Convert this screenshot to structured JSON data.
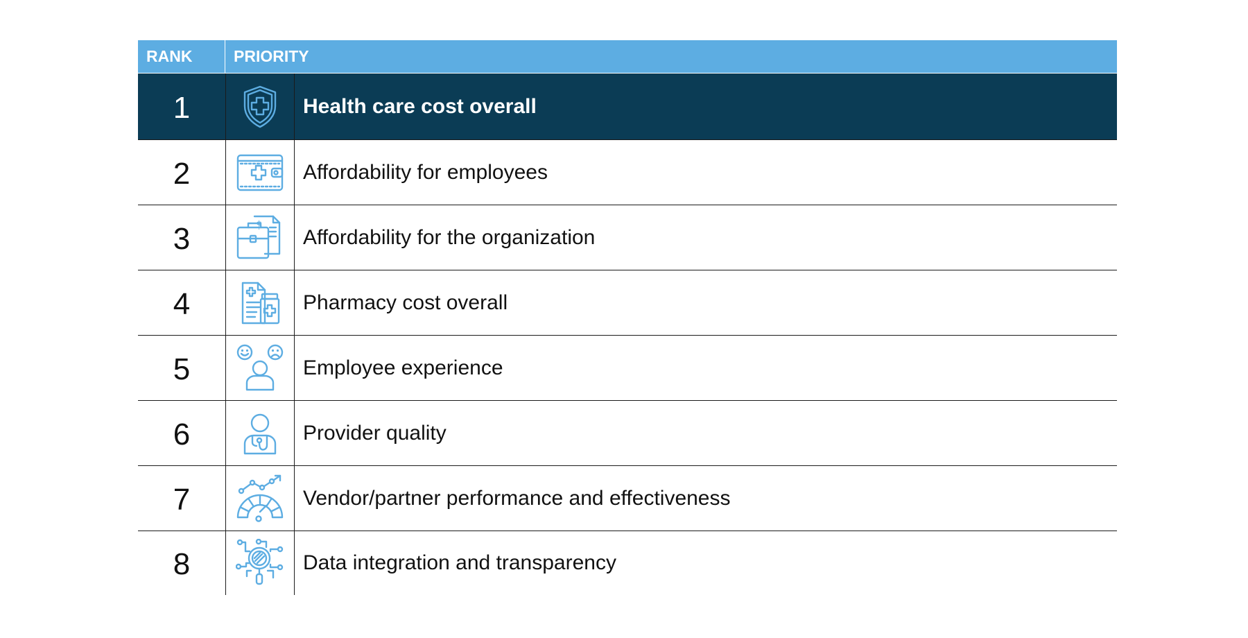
{
  "header": {
    "rank": "RANK",
    "priority": "PRIORITY"
  },
  "rows": [
    {
      "rank": "1",
      "label": "Health care cost overall",
      "icon": "shield-medical-icon"
    },
    {
      "rank": "2",
      "label": "Affordability for employees",
      "icon": "medical-wallet-icon"
    },
    {
      "rank": "3",
      "label": "Affordability for the organization",
      "icon": "briefcase-invoice-icon"
    },
    {
      "rank": "4",
      "label": "Pharmacy cost overall",
      "icon": "prescription-bottle-icon"
    },
    {
      "rank": "5",
      "label": "Employee experience",
      "icon": "person-feedback-icon"
    },
    {
      "rank": "6",
      "label": "Provider quality",
      "icon": "doctor-stethoscope-icon"
    },
    {
      "rank": "7",
      "label": "Vendor/partner performance and effectiveness",
      "icon": "performance-gauge-icon"
    },
    {
      "rank": "8",
      "label": "Data integration and transparency",
      "icon": "data-magnifier-icon"
    }
  ],
  "colors": {
    "header_bg": "#5dade2",
    "highlight_bg": "#0b3c55",
    "icon": "#5dade2"
  }
}
